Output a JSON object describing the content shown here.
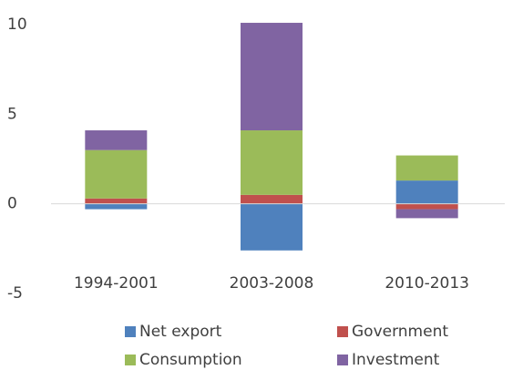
{
  "chart_data": {
    "type": "stacked_bar",
    "categories": [
      "1994-2001",
      "2003-2008",
      "2010-2013"
    ],
    "series": [
      {
        "name": "Net export",
        "color": "#4f81bd",
        "values": [
          -0.3,
          -2.6,
          1.3
        ]
      },
      {
        "name": "Government",
        "color": "#c0504d",
        "values": [
          0.3,
          0.5,
          -0.3
        ]
      },
      {
        "name": "Consumption",
        "color": "#9bbb59",
        "values": [
          2.7,
          3.6,
          1.4
        ]
      },
      {
        "name": "Investment",
        "color": "#8064a2",
        "values": [
          1.1,
          6.0,
          -0.5
        ]
      }
    ],
    "ylim": [
      -5,
      10
    ],
    "yticks": [
      -5,
      0,
      5,
      10
    ],
    "grid": false,
    "legend": "bottom"
  }
}
